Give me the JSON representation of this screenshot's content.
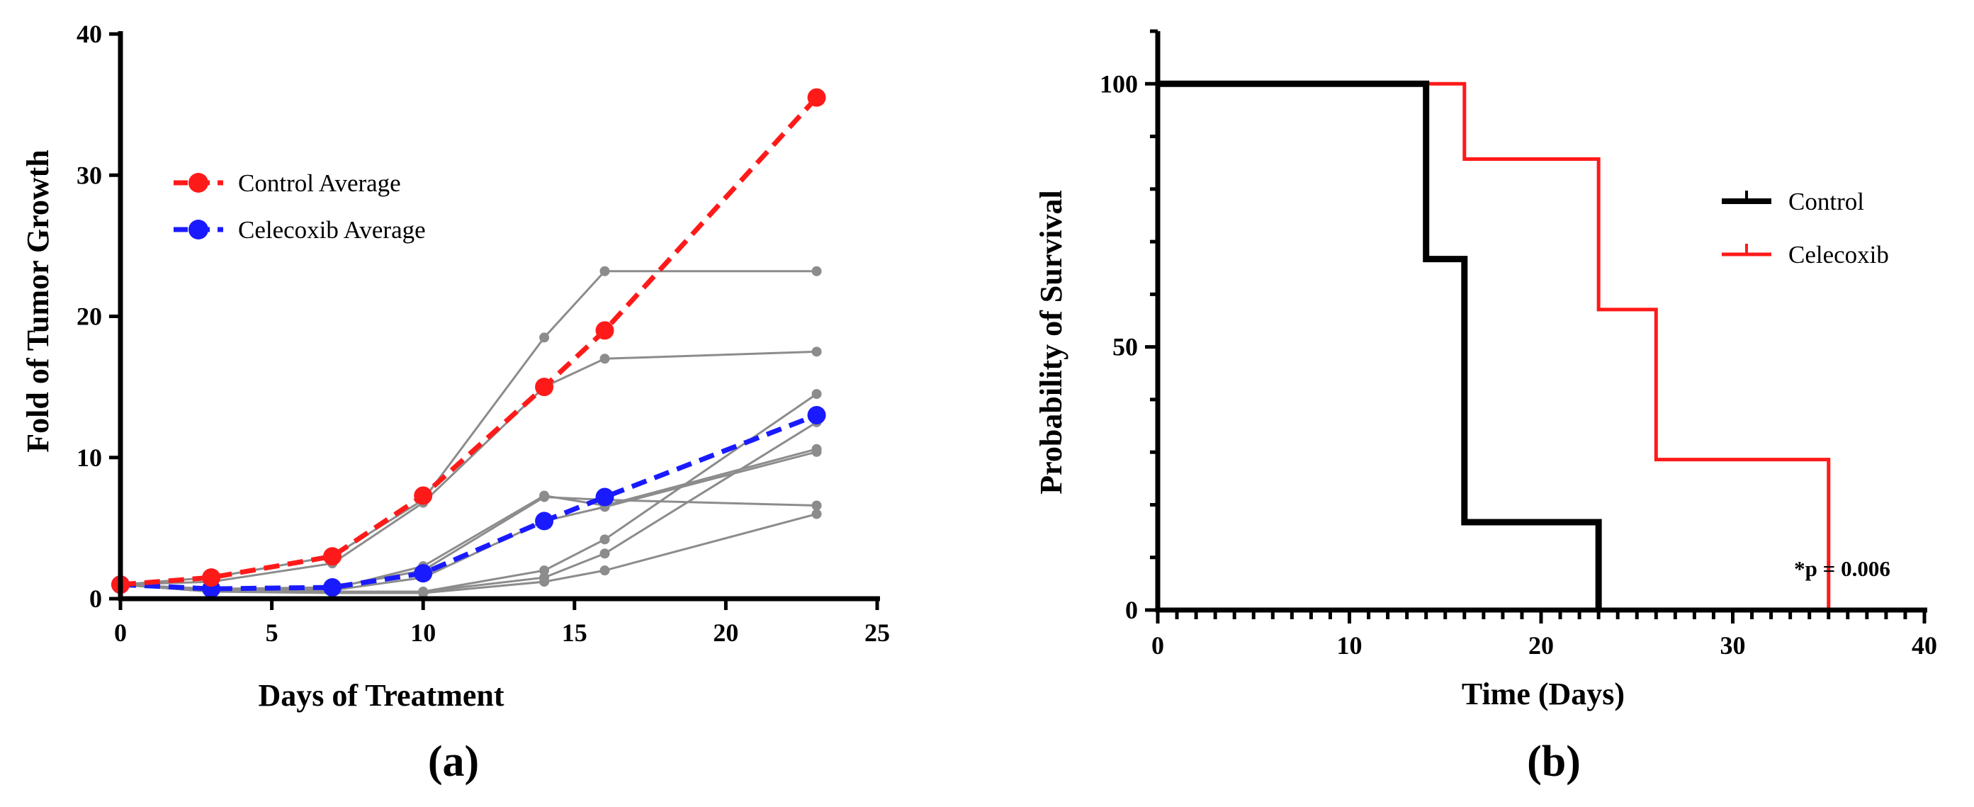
{
  "colors": {
    "control": "#ff1a1a",
    "celecoxib": "#1a1aff",
    "individual": "#8c8c8c",
    "km_control": "#000000",
    "km_celecoxib": "#ff1a1a"
  },
  "chart_data": [
    {
      "type": "line",
      "panel_label": "(a)",
      "xlabel": "Days of Treatment",
      "ylabel": "Fold of Tumor Growth",
      "xlim": [
        0,
        25
      ],
      "ylim": [
        0,
        40
      ],
      "xticks": [
        "0",
        "5",
        "10",
        "15",
        "20",
        "25"
      ],
      "yticks": [
        "0",
        "10",
        "20",
        "30",
        "40"
      ],
      "legend_position": "top-left",
      "series": [
        {
          "name": "Control Average",
          "x": [
            0,
            3,
            7,
            10,
            14,
            16,
            23
          ],
          "values": [
            1,
            1.5,
            3,
            7.3,
            15,
            19,
            35.5
          ]
        },
        {
          "name": "Celecoxib Average",
          "x": [
            0,
            3,
            7,
            10,
            14,
            16,
            23
          ],
          "values": [
            1,
            0.7,
            0.8,
            1.8,
            5.5,
            7.2,
            13
          ]
        }
      ],
      "individual_series": [
        {
          "x": [
            0,
            3,
            7,
            10,
            14,
            16,
            23
          ],
          "values": [
            1,
            1.5,
            3,
            7,
            18.5,
            23.2,
            23.2
          ]
        },
        {
          "x": [
            0,
            3,
            7,
            10,
            14,
            16,
            23
          ],
          "values": [
            1,
            1.2,
            2.5,
            6.8,
            15,
            17,
            17.5
          ]
        },
        {
          "x": [
            0,
            3,
            7,
            10,
            14,
            16,
            23
          ],
          "values": [
            1,
            0.6,
            0.7,
            2.3,
            7.3,
            6.6,
            10.6
          ]
        },
        {
          "x": [
            0,
            3,
            7,
            10,
            14,
            16,
            23
          ],
          "values": [
            1,
            0.7,
            0.8,
            2,
            7.2,
            7,
            6.6
          ]
        },
        {
          "x": [
            0,
            3,
            7,
            10,
            14,
            16,
            23
          ],
          "values": [
            1,
            0.5,
            0.6,
            1.5,
            5.5,
            6.5,
            10.4
          ]
        },
        {
          "x": [
            0,
            3,
            7,
            10,
            14,
            16,
            23
          ],
          "values": [
            1,
            0.5,
            0.5,
            0.5,
            2,
            4.2,
            14.5
          ]
        },
        {
          "x": [
            0,
            3,
            7,
            10,
            14,
            16,
            23
          ],
          "values": [
            1,
            0.5,
            0.5,
            0.5,
            1.5,
            3.2,
            12.5
          ]
        },
        {
          "x": [
            0,
            3,
            7,
            10,
            14,
            16,
            23
          ],
          "values": [
            1,
            0.5,
            0.4,
            0.4,
            1.2,
            2,
            6
          ]
        }
      ]
    },
    {
      "type": "line",
      "subtype": "survival-step",
      "panel_label": "(b)",
      "xlabel": "Time (Days)",
      "ylabel": "Probability of Survival",
      "xlim": [
        0,
        40
      ],
      "ylim": [
        0,
        110
      ],
      "xticks": [
        "0",
        "10",
        "20",
        "30",
        "40"
      ],
      "yticks": [
        "0",
        "50",
        "100"
      ],
      "legend_position": "right",
      "annotation": "*p = 0.006",
      "series": [
        {
          "name": "Control",
          "x": [
            0,
            14,
            14,
            16,
            16,
            23,
            23
          ],
          "values": [
            100,
            100,
            66.7,
            66.7,
            16.7,
            16.7,
            0
          ]
        },
        {
          "name": "Celecoxib",
          "x": [
            14,
            16,
            16,
            23,
            23,
            26,
            26,
            35,
            35
          ],
          "values": [
            100,
            100,
            85.7,
            85.7,
            57.1,
            57.1,
            28.6,
            28.6,
            0
          ]
        }
      ]
    }
  ]
}
